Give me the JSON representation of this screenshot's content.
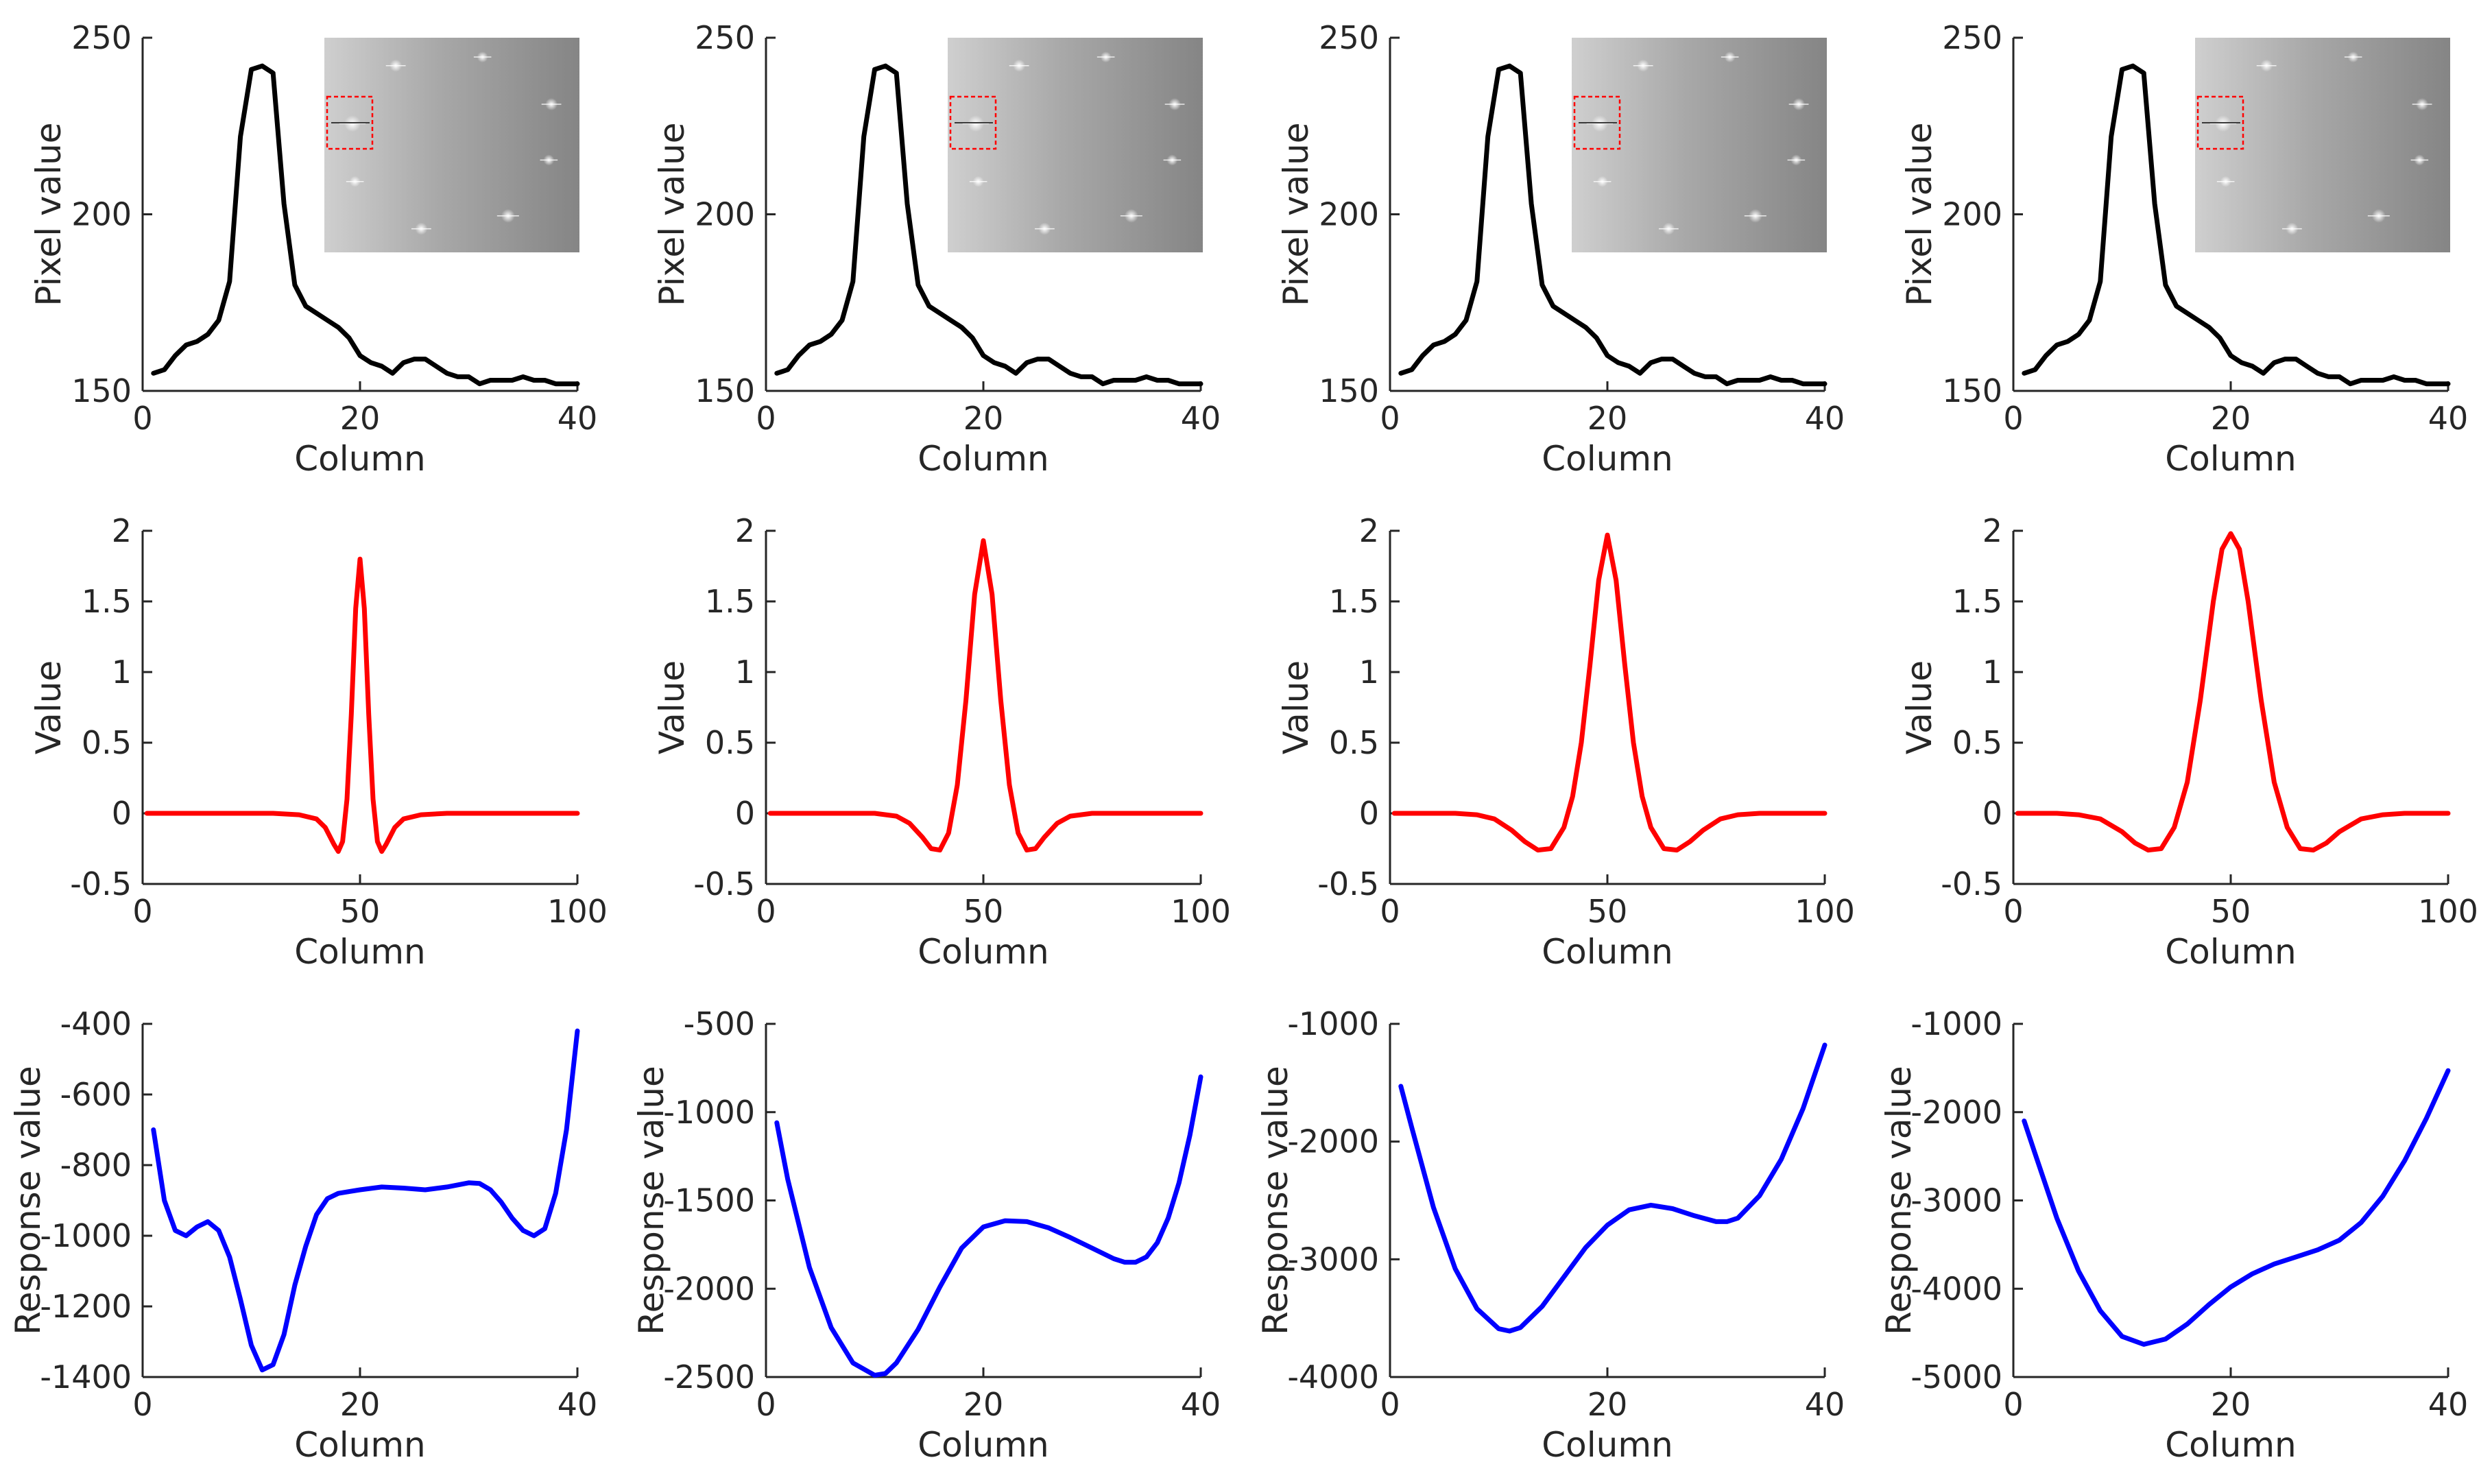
{
  "figure": {
    "rows": 3,
    "columns": 4,
    "colors": {
      "row1": "#000000",
      "row2": "#ff0000",
      "row3": "#0000ff",
      "axis": "#262626"
    }
  },
  "chart_data": [
    {
      "id": "r1c1",
      "type": "line",
      "row": 1,
      "col": 1,
      "color": "#000000",
      "xlabel": "Column",
      "ylabel": "Pixel value",
      "xlim": [
        0,
        40
      ],
      "ylim": [
        150,
        250
      ],
      "xticks": [
        0,
        20,
        40
      ],
      "yticks": [
        150,
        200,
        250
      ],
      "x": [
        1,
        2,
        3,
        4,
        5,
        6,
        7,
        8,
        9,
        10,
        11,
        12,
        13,
        14,
        15,
        16,
        17,
        18,
        19,
        20,
        21,
        22,
        23,
        24,
        25,
        26,
        27,
        28,
        29,
        30,
        31,
        32,
        33,
        34,
        35,
        36,
        37,
        38,
        39,
        40
      ],
      "y": [
        155,
        156,
        160,
        163,
        164,
        166,
        170,
        181,
        222,
        241,
        242,
        240,
        203,
        180,
        174,
        172,
        170,
        168,
        165,
        160,
        158,
        157,
        155,
        158,
        159,
        159,
        157,
        155,
        154,
        154,
        152,
        153,
        153,
        153,
        154,
        153,
        153,
        152,
        152,
        152
      ],
      "inset": "image-thumbnail"
    },
    {
      "id": "r1c2",
      "type": "line",
      "row": 1,
      "col": 2,
      "color": "#000000",
      "xlabel": "Column",
      "ylabel": "Pixel value",
      "xlim": [
        0,
        40
      ],
      "ylim": [
        150,
        250
      ],
      "xticks": [
        0,
        20,
        40
      ],
      "yticks": [
        150,
        200,
        250
      ],
      "x": [
        1,
        2,
        3,
        4,
        5,
        6,
        7,
        8,
        9,
        10,
        11,
        12,
        13,
        14,
        15,
        16,
        17,
        18,
        19,
        20,
        21,
        22,
        23,
        24,
        25,
        26,
        27,
        28,
        29,
        30,
        31,
        32,
        33,
        34,
        35,
        36,
        37,
        38,
        39,
        40
      ],
      "y": [
        155,
        156,
        160,
        163,
        164,
        166,
        170,
        181,
        222,
        241,
        242,
        240,
        203,
        180,
        174,
        172,
        170,
        168,
        165,
        160,
        158,
        157,
        155,
        158,
        159,
        159,
        157,
        155,
        154,
        154,
        152,
        153,
        153,
        153,
        154,
        153,
        153,
        152,
        152,
        152
      ],
      "inset": "image-thumbnail"
    },
    {
      "id": "r1c3",
      "type": "line",
      "row": 1,
      "col": 3,
      "color": "#000000",
      "xlabel": "Column",
      "ylabel": "Pixel value",
      "xlim": [
        0,
        40
      ],
      "ylim": [
        150,
        250
      ],
      "xticks": [
        0,
        20,
        40
      ],
      "yticks": [
        150,
        200,
        250
      ],
      "x": [
        1,
        2,
        3,
        4,
        5,
        6,
        7,
        8,
        9,
        10,
        11,
        12,
        13,
        14,
        15,
        16,
        17,
        18,
        19,
        20,
        21,
        22,
        23,
        24,
        25,
        26,
        27,
        28,
        29,
        30,
        31,
        32,
        33,
        34,
        35,
        36,
        37,
        38,
        39,
        40
      ],
      "y": [
        155,
        156,
        160,
        163,
        164,
        166,
        170,
        181,
        222,
        241,
        242,
        240,
        203,
        180,
        174,
        172,
        170,
        168,
        165,
        160,
        158,
        157,
        155,
        158,
        159,
        159,
        157,
        155,
        154,
        154,
        152,
        153,
        153,
        153,
        154,
        153,
        153,
        152,
        152,
        152
      ],
      "inset": "image-thumbnail"
    },
    {
      "id": "r1c4",
      "type": "line",
      "row": 1,
      "col": 4,
      "color": "#000000",
      "xlabel": "Column",
      "ylabel": "Pixel value",
      "xlim": [
        0,
        40
      ],
      "ylim": [
        150,
        250
      ],
      "xticks": [
        0,
        20,
        40
      ],
      "yticks": [
        150,
        200,
        250
      ],
      "x": [
        1,
        2,
        3,
        4,
        5,
        6,
        7,
        8,
        9,
        10,
        11,
        12,
        13,
        14,
        15,
        16,
        17,
        18,
        19,
        20,
        21,
        22,
        23,
        24,
        25,
        26,
        27,
        28,
        29,
        30,
        31,
        32,
        33,
        34,
        35,
        36,
        37,
        38,
        39,
        40
      ],
      "y": [
        155,
        156,
        160,
        163,
        164,
        166,
        170,
        181,
        222,
        241,
        242,
        240,
        203,
        180,
        174,
        172,
        170,
        168,
        165,
        160,
        158,
        157,
        155,
        158,
        159,
        159,
        157,
        155,
        154,
        154,
        152,
        153,
        153,
        153,
        154,
        153,
        153,
        152,
        152,
        152
      ],
      "inset": "image-thumbnail"
    },
    {
      "id": "r2c1",
      "type": "line",
      "row": 2,
      "col": 1,
      "color": "#ff0000",
      "xlabel": "Column",
      "ylabel": "Value",
      "xlim": [
        0,
        100
      ],
      "ylim": [
        -0.5,
        2
      ],
      "xticks": [
        0,
        50,
        100
      ],
      "yticks": [
        -0.5,
        0,
        0.5,
        1,
        1.5,
        2
      ],
      "x": [
        1,
        10,
        20,
        30,
        36,
        40,
        42,
        44,
        45,
        46,
        47,
        48,
        49,
        50,
        51,
        52,
        53,
        54,
        55,
        56,
        58,
        60,
        64,
        70,
        80,
        90,
        100
      ],
      "y": [
        0,
        0,
        0,
        0,
        -0.01,
        -0.04,
        -0.1,
        -0.22,
        -0.27,
        -0.2,
        0.1,
        0.7,
        1.45,
        1.8,
        1.45,
        0.7,
        0.1,
        -0.2,
        -0.27,
        -0.22,
        -0.1,
        -0.04,
        -0.01,
        0,
        0,
        0,
        0
      ]
    },
    {
      "id": "r2c2",
      "type": "line",
      "row": 2,
      "col": 2,
      "color": "#ff0000",
      "xlabel": "Column",
      "ylabel": "Value",
      "xlim": [
        0,
        100
      ],
      "ylim": [
        -0.5,
        2
      ],
      "xticks": [
        0,
        50,
        100
      ],
      "yticks": [
        -0.5,
        0,
        0.5,
        1,
        1.5,
        2
      ],
      "x": [
        1,
        10,
        20,
        25,
        30,
        33,
        36,
        38,
        40,
        42,
        44,
        46,
        48,
        50,
        52,
        54,
        56,
        58,
        60,
        62,
        64,
        67,
        70,
        75,
        80,
        90,
        100
      ],
      "y": [
        0,
        0,
        0,
        0,
        -0.02,
        -0.07,
        -0.17,
        -0.25,
        -0.26,
        -0.14,
        0.2,
        0.8,
        1.55,
        1.93,
        1.55,
        0.8,
        0.2,
        -0.14,
        -0.26,
        -0.25,
        -0.17,
        -0.07,
        -0.02,
        0,
        0,
        0,
        0
      ]
    },
    {
      "id": "r2c3",
      "type": "line",
      "row": 2,
      "col": 3,
      "color": "#ff0000",
      "xlabel": "Column",
      "ylabel": "Value",
      "xlim": [
        0,
        100
      ],
      "ylim": [
        -0.5,
        2
      ],
      "xticks": [
        0,
        50,
        100
      ],
      "yticks": [
        -0.5,
        0,
        0.5,
        1,
        1.5,
        2
      ],
      "x": [
        1,
        10,
        15,
        20,
        24,
        28,
        31,
        34,
        37,
        40,
        42,
        44,
        46,
        48,
        50,
        52,
        54,
        56,
        58,
        60,
        63,
        66,
        69,
        72,
        76,
        80,
        85,
        90,
        100
      ],
      "y": [
        0,
        0,
        0,
        -0.01,
        -0.04,
        -0.12,
        -0.2,
        -0.26,
        -0.25,
        -0.1,
        0.12,
        0.5,
        1.05,
        1.65,
        1.97,
        1.65,
        1.05,
        0.5,
        0.12,
        -0.1,
        -0.25,
        -0.26,
        -0.2,
        -0.12,
        -0.04,
        -0.01,
        0,
        0,
        0
      ]
    },
    {
      "id": "r2c4",
      "type": "line",
      "row": 2,
      "col": 4,
      "color": "#ff0000",
      "xlabel": "Column",
      "ylabel": "Value",
      "xlim": [
        0,
        100
      ],
      "ylim": [
        -0.5,
        2
      ],
      "xticks": [
        0,
        50,
        100
      ],
      "yticks": [
        -0.5,
        0,
        0.5,
        1,
        1.5,
        2
      ],
      "x": [
        1,
        10,
        15,
        20,
        25,
        28,
        31,
        34,
        37,
        40,
        43,
        46,
        48,
        50,
        52,
        54,
        57,
        60,
        63,
        66,
        69,
        72,
        75,
        80,
        85,
        90,
        100
      ],
      "y": [
        0,
        0,
        -0.01,
        -0.04,
        -0.13,
        -0.21,
        -0.26,
        -0.25,
        -0.1,
        0.22,
        0.8,
        1.5,
        1.87,
        1.98,
        1.87,
        1.5,
        0.8,
        0.22,
        -0.1,
        -0.25,
        -0.26,
        -0.21,
        -0.13,
        -0.04,
        -0.01,
        0,
        0
      ]
    },
    {
      "id": "r3c1",
      "type": "line",
      "row": 3,
      "col": 1,
      "color": "#0000ff",
      "xlabel": "Column",
      "ylabel": "Response value",
      "xlim": [
        0,
        40
      ],
      "ylim": [
        -1400,
        -400
      ],
      "xticks": [
        0,
        20,
        40
      ],
      "yticks": [
        -1400,
        -1200,
        -1000,
        -800,
        -600,
        -400
      ],
      "x": [
        1,
        2,
        3,
        4,
        5,
        6,
        7,
        8,
        9,
        10,
        11,
        12,
        13,
        14,
        15,
        16,
        17,
        18,
        19,
        20,
        22,
        24,
        26,
        28,
        30,
        31,
        32,
        33,
        34,
        35,
        36,
        37,
        38,
        39,
        40
      ],
      "y": [
        -700,
        -900,
        -985,
        -1000,
        -975,
        -960,
        -985,
        -1060,
        -1180,
        -1310,
        -1380,
        -1365,
        -1280,
        -1140,
        -1030,
        -940,
        -895,
        -880,
        -875,
        -870,
        -862,
        -865,
        -870,
        -862,
        -850,
        -852,
        -870,
        -905,
        -950,
        -985,
        -1000,
        -980,
        -880,
        -700,
        -420
      ]
    },
    {
      "id": "r3c2",
      "type": "line",
      "row": 3,
      "col": 2,
      "color": "#0000ff",
      "xlabel": "Column",
      "ylabel": "Response value",
      "xlim": [
        0,
        40
      ],
      "ylim": [
        -2500,
        -500
      ],
      "xticks": [
        0,
        20,
        40
      ],
      "yticks": [
        -2500,
        -2000,
        -1500,
        -1000,
        -500
      ],
      "x": [
        1,
        2,
        4,
        6,
        8,
        10,
        11,
        12,
        14,
        16,
        18,
        20,
        22,
        24,
        26,
        28,
        30,
        32,
        33,
        34,
        35,
        36,
        37,
        38,
        39,
        40
      ],
      "y": [
        -1060,
        -1380,
        -1880,
        -2220,
        -2420,
        -2490,
        -2480,
        -2420,
        -2230,
        -1990,
        -1770,
        -1650,
        -1615,
        -1620,
        -1655,
        -1710,
        -1770,
        -1830,
        -1850,
        -1850,
        -1820,
        -1740,
        -1600,
        -1400,
        -1130,
        -800
      ]
    },
    {
      "id": "r3c3",
      "type": "line",
      "row": 3,
      "col": 3,
      "color": "#0000ff",
      "xlabel": "Column",
      "ylabel": "Response value",
      "xlim": [
        0,
        40
      ],
      "ylim": [
        -4000,
        -1000
      ],
      "xticks": [
        0,
        20,
        40
      ],
      "yticks": [
        -4000,
        -3000,
        -2000,
        -1000
      ],
      "x": [
        1,
        2,
        4,
        6,
        8,
        10,
        11,
        12,
        14,
        16,
        18,
        20,
        22,
        24,
        26,
        28,
        30,
        31,
        32,
        34,
        36,
        38,
        40
      ],
      "y": [
        -1530,
        -1880,
        -2560,
        -3080,
        -3420,
        -3590,
        -3610,
        -3580,
        -3400,
        -3150,
        -2900,
        -2710,
        -2580,
        -2540,
        -2570,
        -2630,
        -2680,
        -2680,
        -2650,
        -2460,
        -2150,
        -1720,
        -1180
      ]
    },
    {
      "id": "r3c4",
      "type": "line",
      "row": 3,
      "col": 4,
      "color": "#0000ff",
      "xlabel": "Column",
      "ylabel": "Response value",
      "xlim": [
        0,
        40
      ],
      "ylim": [
        -5000,
        -1000
      ],
      "xticks": [
        0,
        20,
        40
      ],
      "yticks": [
        -5000,
        -4000,
        -3000,
        -2000,
        -1000
      ],
      "x": [
        1,
        2,
        4,
        6,
        8,
        10,
        12,
        14,
        16,
        18,
        20,
        22,
        24,
        26,
        28,
        30,
        32,
        34,
        36,
        38,
        40
      ],
      "y": [
        -2100,
        -2470,
        -3200,
        -3800,
        -4250,
        -4540,
        -4630,
        -4570,
        -4400,
        -4180,
        -3980,
        -3830,
        -3720,
        -3640,
        -3560,
        -3450,
        -3250,
        -2950,
        -2550,
        -2070,
        -1530
      ]
    }
  ]
}
